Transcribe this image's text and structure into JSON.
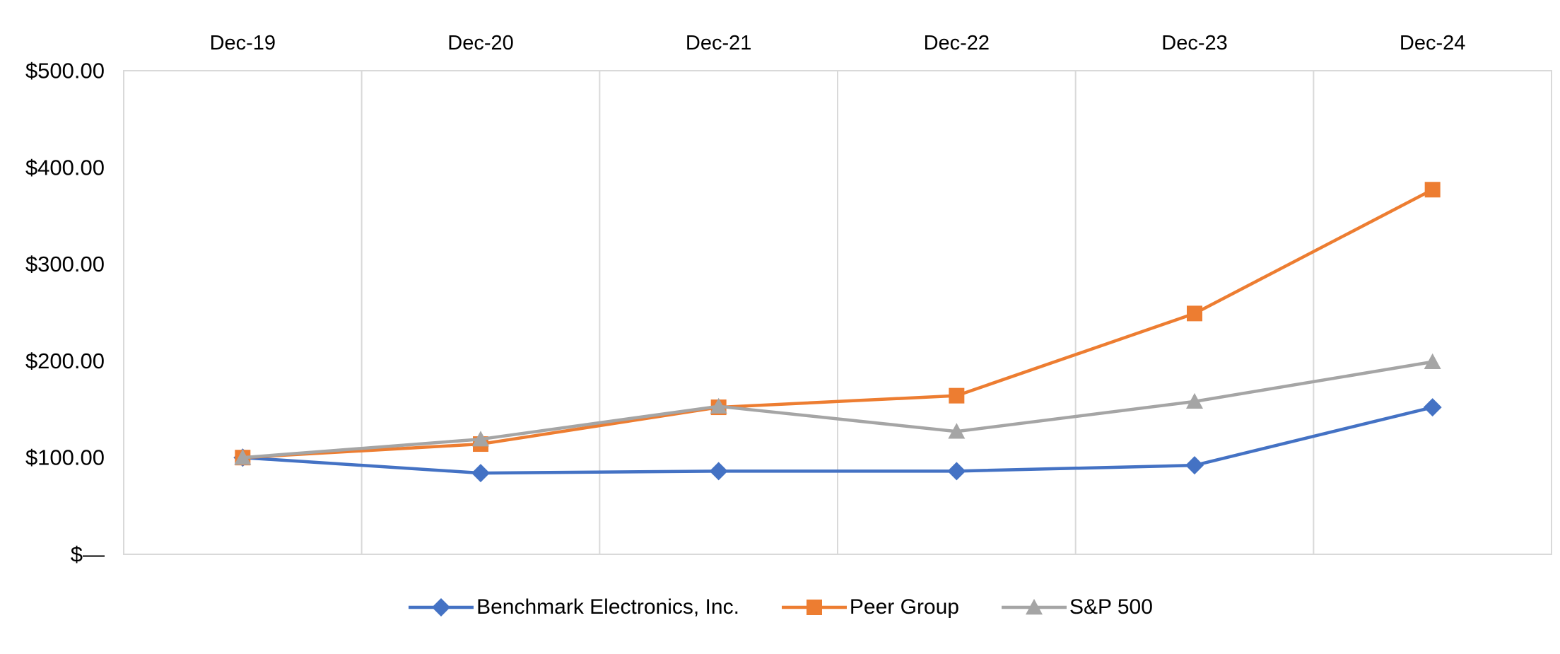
{
  "chart_data": {
    "type": "line",
    "title": "",
    "xlabel": "",
    "ylabel": "",
    "categories": [
      "Dec-19",
      "Dec-20",
      "Dec-21",
      "Dec-22",
      "Dec-23",
      "Dec-24"
    ],
    "series": [
      {
        "name": "Benchmark Electronics, Inc.",
        "color": "#4472C4",
        "marker": "diamond",
        "values": [
          100,
          84,
          86,
          86,
          92,
          152
        ]
      },
      {
        "name": "Peer Group",
        "color": "#ED7D31",
        "marker": "square",
        "values": [
          100,
          114,
          152,
          164,
          249,
          377
        ]
      },
      {
        "name": "S&P 500",
        "color": "#A5A5A5",
        "marker": "triangle",
        "values": [
          100,
          119,
          153,
          127,
          158,
          199
        ]
      }
    ],
    "y_ticks": [
      "$500.00",
      "$400.00",
      "$300.00",
      "$200.00",
      "$100.00",
      "$—"
    ],
    "y_tick_values": [
      500,
      400,
      300,
      200,
      100,
      0
    ],
    "ylim": [
      0,
      500
    ],
    "x_axis_position": "top",
    "grid": "vertical-only",
    "legend_position": "bottom"
  },
  "colors": {
    "grid": "#D9D9D9",
    "axis": "#D9D9D9",
    "text": "#000000",
    "background": "#FFFFFF"
  }
}
